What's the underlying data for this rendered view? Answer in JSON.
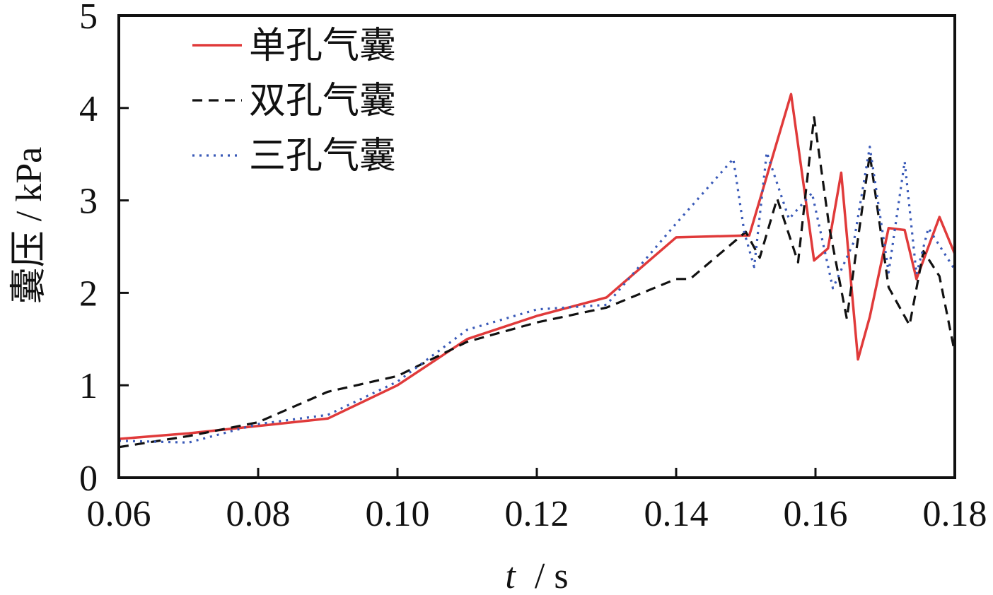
{
  "chart_data": {
    "type": "line",
    "xlabel_var": "t",
    "xlabel_unit": "/ s",
    "ylabel": "囊压 / kPa",
    "xlim": [
      0.06,
      0.18
    ],
    "ylim": [
      0,
      5
    ],
    "xticks": [
      0.06,
      0.08,
      0.1,
      0.12,
      0.14,
      0.16,
      0.18
    ],
    "xtick_labels": [
      "0.06",
      "0.08",
      "0.10",
      "0.12",
      "0.14",
      "0.16",
      "0.18"
    ],
    "yticks": [
      0,
      1,
      2,
      3,
      4,
      5
    ],
    "ytick_labels": [
      "0",
      "1",
      "2",
      "3",
      "4",
      "5"
    ],
    "grid": false,
    "legend_position": "top-left",
    "series": [
      {
        "name": "单孔气囊",
        "color": "#e03a3a",
        "style": "solid",
        "x": [
          0.06,
          0.07,
          0.08,
          0.09,
          0.1,
          0.11,
          0.12,
          0.13,
          0.14,
          0.15,
          0.1505,
          0.1565,
          0.1598,
          0.1618,
          0.1637,
          0.1661,
          0.1678,
          0.1705,
          0.1728,
          0.1745,
          0.1778,
          0.18
        ],
        "y": [
          0.42,
          0.48,
          0.56,
          0.64,
          1.0,
          1.5,
          1.75,
          1.95,
          2.6,
          2.62,
          2.62,
          4.15,
          2.35,
          2.48,
          3.3,
          1.28,
          1.74,
          2.7,
          2.68,
          2.15,
          2.82,
          2.42
        ]
      },
      {
        "name": "双孔气囊",
        "color": "#111111",
        "style": "dashed",
        "x": [
          0.06,
          0.07,
          0.08,
          0.09,
          0.1,
          0.11,
          0.12,
          0.13,
          0.14,
          0.142,
          0.15,
          0.152,
          0.1545,
          0.1575,
          0.1598,
          0.162,
          0.1645,
          0.1678,
          0.1705,
          0.1735,
          0.1755,
          0.1778,
          0.18
        ],
        "y": [
          0.33,
          0.45,
          0.6,
          0.93,
          1.1,
          1.47,
          1.68,
          1.84,
          2.15,
          2.15,
          2.66,
          2.38,
          3.02,
          2.33,
          3.9,
          2.7,
          1.72,
          3.5,
          2.06,
          1.65,
          2.45,
          2.18,
          1.35
        ]
      },
      {
        "name": "三孔气囊",
        "color": "#3a5ab8",
        "style": "dotted",
        "x": [
          0.06,
          0.07,
          0.08,
          0.09,
          0.1,
          0.11,
          0.12,
          0.13,
          0.14,
          0.1482,
          0.1498,
          0.1512,
          0.153,
          0.1562,
          0.1595,
          0.1625,
          0.1655,
          0.1678,
          0.1705,
          0.1728,
          0.1745,
          0.1762,
          0.18
        ],
        "y": [
          0.4,
          0.38,
          0.58,
          0.68,
          1.04,
          1.6,
          1.82,
          1.87,
          2.75,
          3.45,
          2.65,
          2.28,
          3.52,
          2.8,
          3.08,
          2.05,
          2.55,
          3.58,
          2.22,
          3.42,
          2.2,
          2.7,
          2.25
        ]
      }
    ]
  }
}
